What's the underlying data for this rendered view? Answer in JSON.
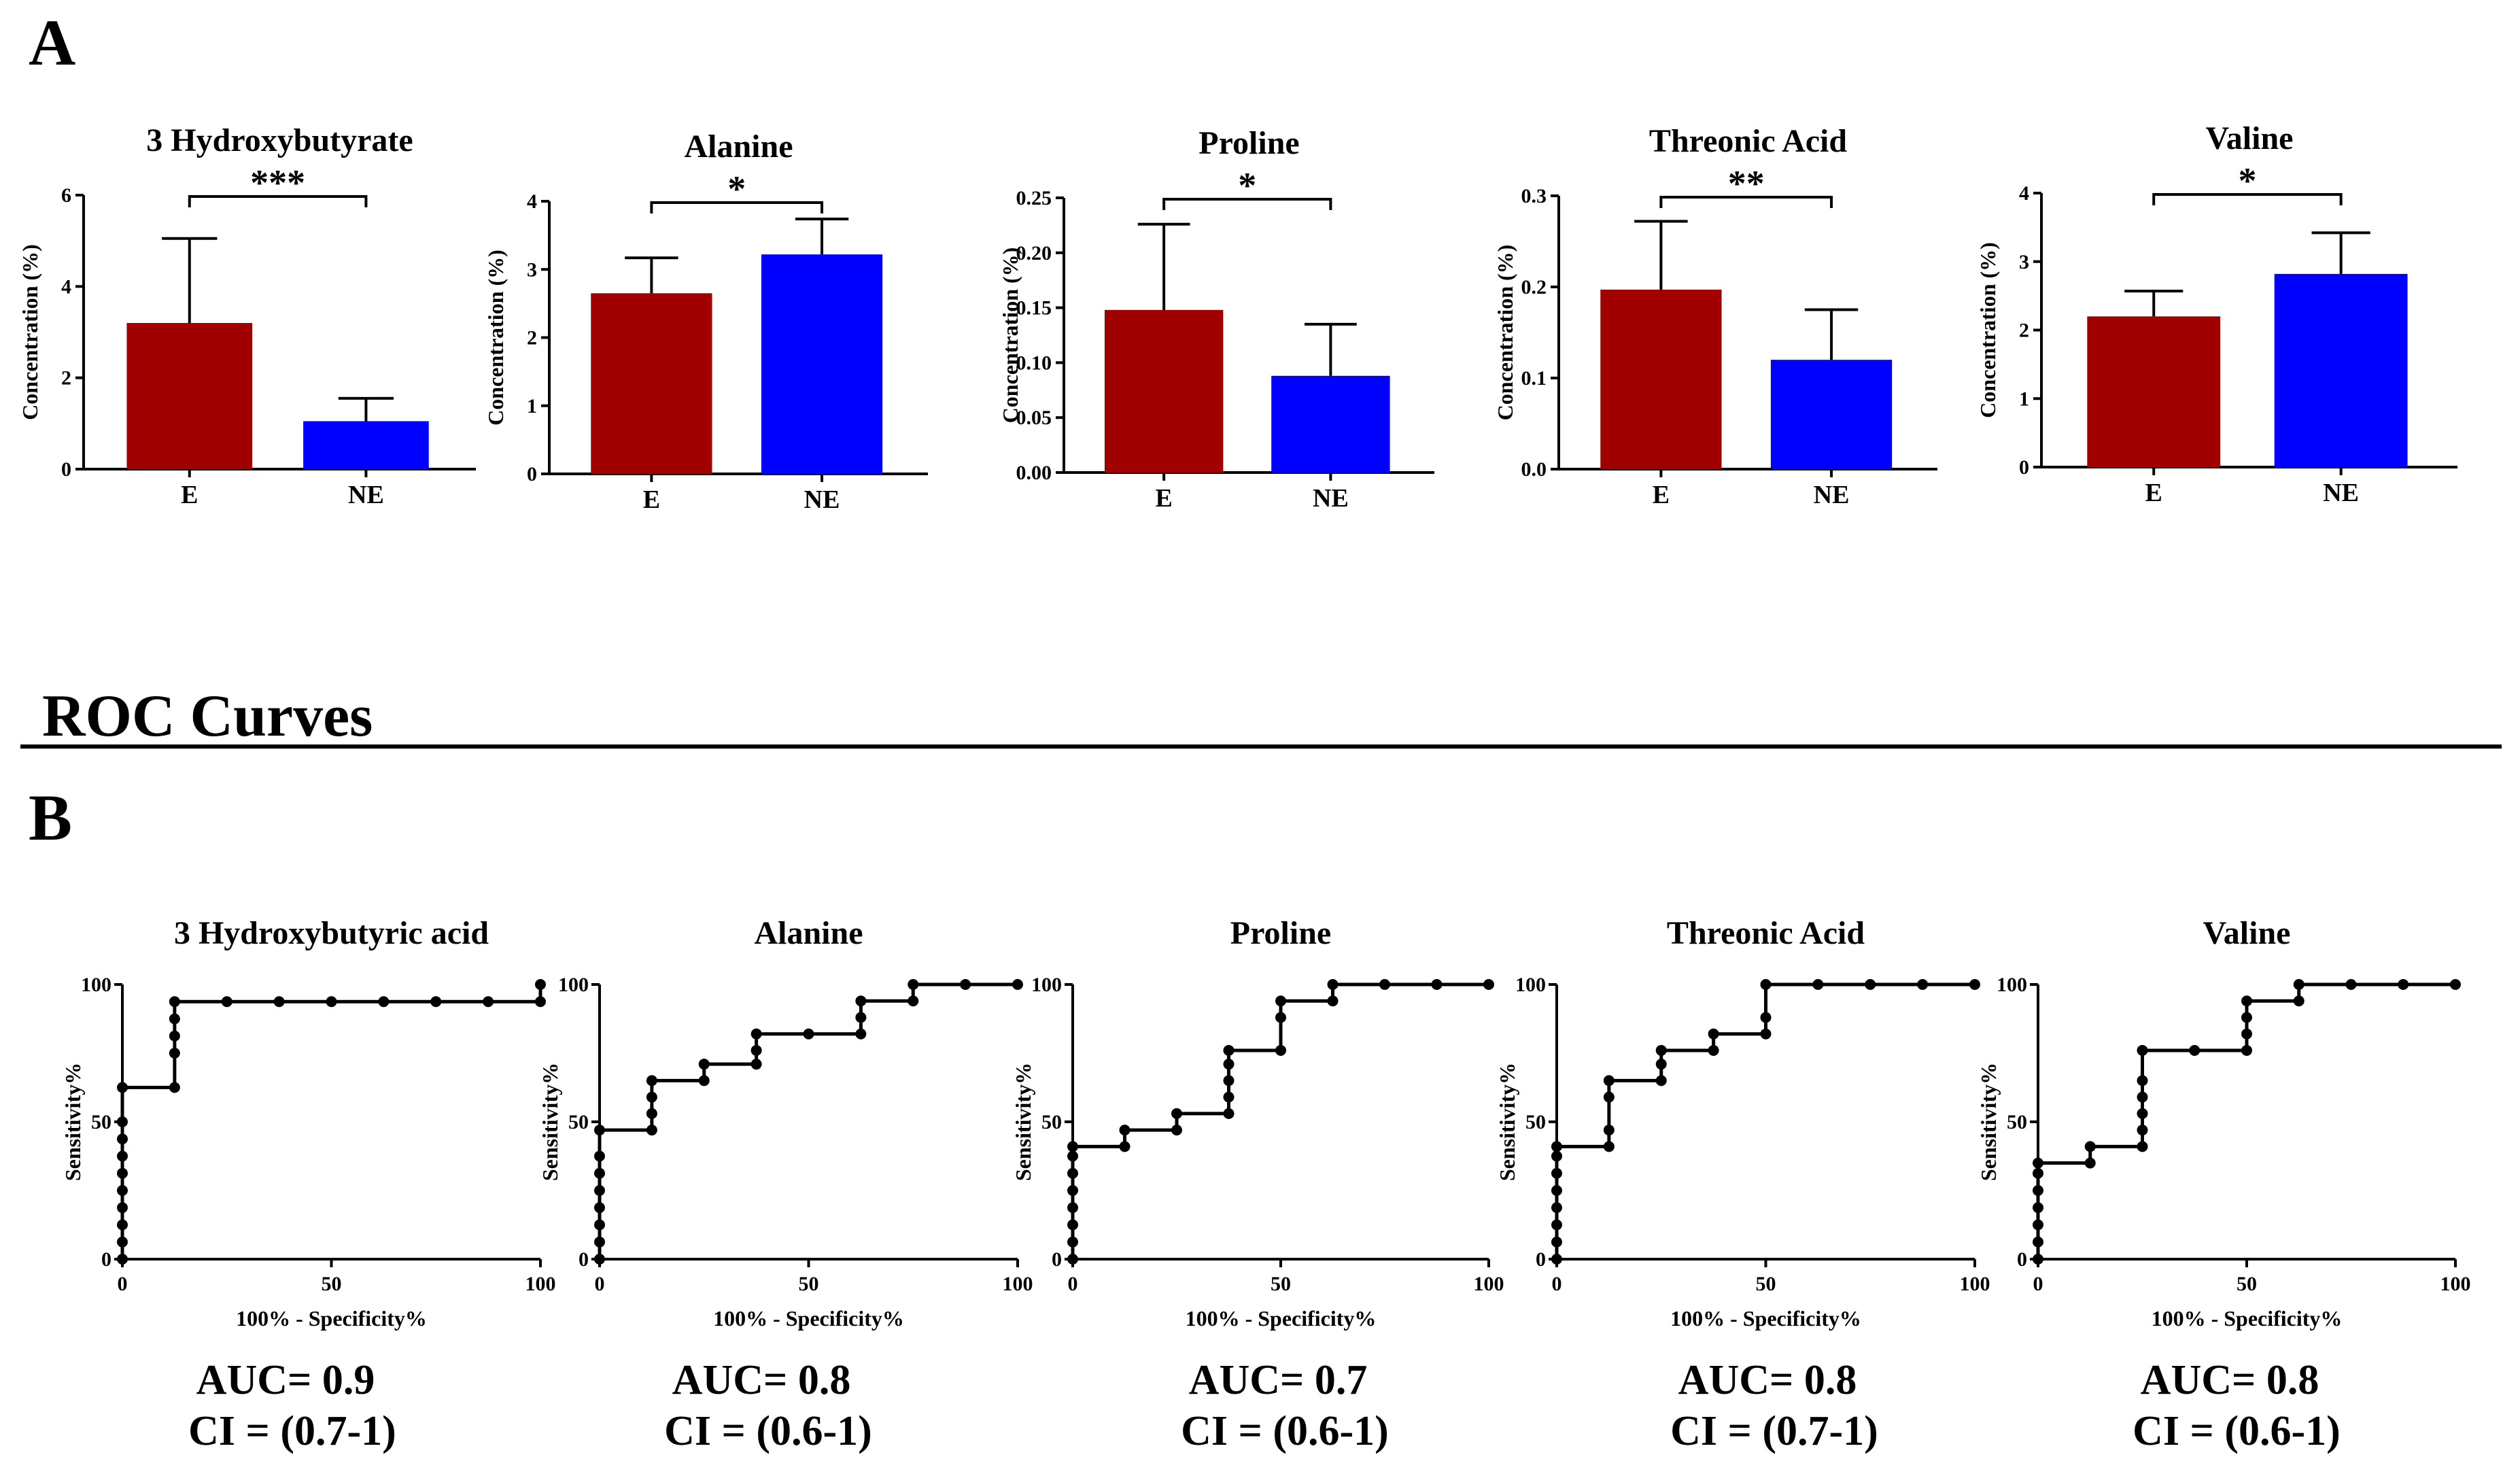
{
  "figure": {
    "panel_a_label": "A",
    "panel_b_label": "B",
    "roc_section_title": "ROC Curves"
  },
  "colors": {
    "E": "#a00000",
    "NE": "#0000ff",
    "axis": "#000000"
  },
  "chart_data": [
    {
      "type": "bar",
      "title": "3 Hydroxybutyrate",
      "categories": [
        "E",
        "NE"
      ],
      "values": [
        3.2,
        1.05
      ],
      "errors": [
        1.85,
        0.5
      ],
      "ylim": [
        0,
        6
      ],
      "yticks": [
        "0",
        "2",
        "4",
        "6"
      ],
      "ylabel": "Concentration (%)",
      "xlabel": "",
      "significance": "***"
    },
    {
      "type": "bar",
      "title": "Alanine",
      "categories": [
        "E",
        "NE"
      ],
      "values": [
        2.65,
        3.22
      ],
      "errors": [
        0.52,
        0.52
      ],
      "ylim": [
        0,
        4
      ],
      "yticks": [
        "0",
        "1",
        "2",
        "3",
        "4"
      ],
      "ylabel": "Concentration (%)",
      "xlabel": "",
      "significance": "*"
    },
    {
      "type": "bar",
      "title": "Proline",
      "categories": [
        "E",
        "NE"
      ],
      "values": [
        0.148,
        0.088
      ],
      "errors": [
        0.078,
        0.047
      ],
      "ylim": [
        0,
        0.25
      ],
      "yticks": [
        "0.00",
        "0.05",
        "0.10",
        "0.15",
        "0.20",
        "0.25"
      ],
      "ylabel": "Concentration (%)",
      "xlabel": "",
      "significance": "*"
    },
    {
      "type": "bar",
      "title": "Threonic Acid",
      "categories": [
        "E",
        "NE"
      ],
      "values": [
        0.197,
        0.12
      ],
      "errors": [
        0.075,
        0.055
      ],
      "ylim": [
        0,
        0.3
      ],
      "yticks": [
        "0.0",
        "0.1",
        "0.2",
        "0.3"
      ],
      "ylabel": "Concentration (%)",
      "xlabel": "",
      "significance": "**"
    },
    {
      "type": "bar",
      "title": "Valine",
      "categories": [
        "E",
        "NE"
      ],
      "values": [
        2.2,
        2.82
      ],
      "errors": [
        0.37,
        0.6
      ],
      "ylim": [
        0,
        4
      ],
      "yticks": [
        "0",
        "1",
        "2",
        "3",
        "4"
      ],
      "ylabel": "Concentration (%)",
      "xlabel": "",
      "significance": "*"
    },
    {
      "type": "line",
      "title": "3 Hydroxybutyric acid",
      "xlabel": "100% - Specificity%",
      "ylabel": "Sensitivity%",
      "xlim": [
        0,
        100
      ],
      "ylim": [
        0,
        100
      ],
      "xticks": [
        "0",
        "50",
        "100"
      ],
      "yticks": [
        "0",
        "50",
        "100"
      ],
      "x": [
        0,
        0,
        0,
        0,
        0,
        0,
        0,
        0,
        0,
        0,
        12.5,
        12.5,
        12.5,
        12.5,
        12.5,
        25,
        37.5,
        50,
        62.5,
        75,
        87.5,
        100,
        100
      ],
      "y": [
        0,
        6.25,
        12.5,
        18.75,
        25,
        31.25,
        37.5,
        43.75,
        50,
        62.5,
        62.5,
        75,
        81.25,
        87.5,
        93.75,
        93.75,
        93.75,
        93.75,
        93.75,
        93.75,
        93.75,
        93.75,
        100
      ],
      "auc": "AUC= 0.9",
      "ci": "CI = (0.7-1)"
    },
    {
      "type": "line",
      "title": "Alanine",
      "xlabel": "100% - Specificity%",
      "ylabel": "Sensitivity%",
      "xlim": [
        0,
        100
      ],
      "ylim": [
        0,
        100
      ],
      "xticks": [
        "0",
        "50",
        "100"
      ],
      "yticks": [
        "0",
        "50",
        "100"
      ],
      "x": [
        0,
        0,
        0,
        0,
        0,
        0,
        0,
        0,
        12.5,
        12.5,
        12.5,
        12.5,
        25,
        25,
        37.5,
        37.5,
        37.5,
        50,
        62.5,
        62.5,
        62.5,
        75,
        75,
        87.5,
        100
      ],
      "y": [
        0,
        6.25,
        12.5,
        18.75,
        25,
        31.25,
        37.5,
        47,
        47,
        53,
        59,
        65,
        65,
        71,
        71,
        76,
        82,
        82,
        82,
        88,
        94,
        94,
        100,
        100,
        100
      ],
      "auc": "AUC= 0.8",
      "ci": "CI = (0.6-1)"
    },
    {
      "type": "line",
      "title": "Proline",
      "xlabel": "100% - Specificity%",
      "ylabel": "Sensitivity%",
      "xlim": [
        0,
        100
      ],
      "ylim": [
        0,
        100
      ],
      "xticks": [
        "0",
        "50",
        "100"
      ],
      "yticks": [
        "0",
        "50",
        "100"
      ],
      "x": [
        0,
        0,
        0,
        0,
        0,
        0,
        0,
        0,
        12.5,
        12.5,
        25,
        25,
        37.5,
        37.5,
        37.5,
        37.5,
        37.5,
        50,
        50,
        50,
        62.5,
        62.5,
        75,
        87.5,
        100
      ],
      "y": [
        0,
        6.25,
        12.5,
        18.75,
        25,
        31.25,
        37.5,
        41,
        41,
        47,
        47,
        53,
        53,
        59,
        65,
        71,
        76,
        76,
        88,
        94,
        94,
        100,
        100,
        100,
        100
      ],
      "auc": "AUC= 0.7",
      "ci": "CI = (0.6-1)"
    },
    {
      "type": "line",
      "title": "Threonic Acid",
      "xlabel": "100% - Specificity%",
      "ylabel": "Sensitivity%",
      "xlim": [
        0,
        100
      ],
      "ylim": [
        0,
        100
      ],
      "xticks": [
        "0",
        "50",
        "100"
      ],
      "yticks": [
        "0",
        "50",
        "100"
      ],
      "x": [
        0,
        0,
        0,
        0,
        0,
        0,
        0,
        0,
        12.5,
        12.5,
        12.5,
        12.5,
        25,
        25,
        25,
        37.5,
        37.5,
        50,
        50,
        50,
        62.5,
        75,
        87.5,
        100
      ],
      "y": [
        0,
        6.25,
        12.5,
        18.75,
        25,
        31.25,
        37.5,
        41,
        41,
        47,
        59,
        65,
        65,
        71,
        76,
        76,
        82,
        82,
        88,
        100,
        100,
        100,
        100,
        100
      ],
      "auc": "AUC= 0.8",
      "ci": "CI = (0.7-1)"
    },
    {
      "type": "line",
      "title": "Valine",
      "xlabel": "100% - Specificity%",
      "ylabel": "Sensitivity%",
      "xlim": [
        0,
        100
      ],
      "ylim": [
        0,
        100
      ],
      "xticks": [
        "0",
        "50",
        "100"
      ],
      "yticks": [
        "0",
        "50",
        "100"
      ],
      "x": [
        0,
        0,
        0,
        0,
        0,
        0,
        0,
        12.5,
        12.5,
        25,
        25,
        25,
        25,
        25,
        25,
        37.5,
        50,
        50,
        50,
        50,
        62.5,
        62.5,
        75,
        87.5,
        100
      ],
      "y": [
        0,
        6.25,
        12.5,
        18.75,
        25,
        31.25,
        35,
        35,
        41,
        41,
        47,
        53,
        59,
        65,
        76,
        76,
        76,
        82,
        88,
        94,
        94,
        100,
        100,
        100,
        100
      ],
      "auc": "AUC= 0.8",
      "ci": "CI = (0.6-1)"
    }
  ]
}
